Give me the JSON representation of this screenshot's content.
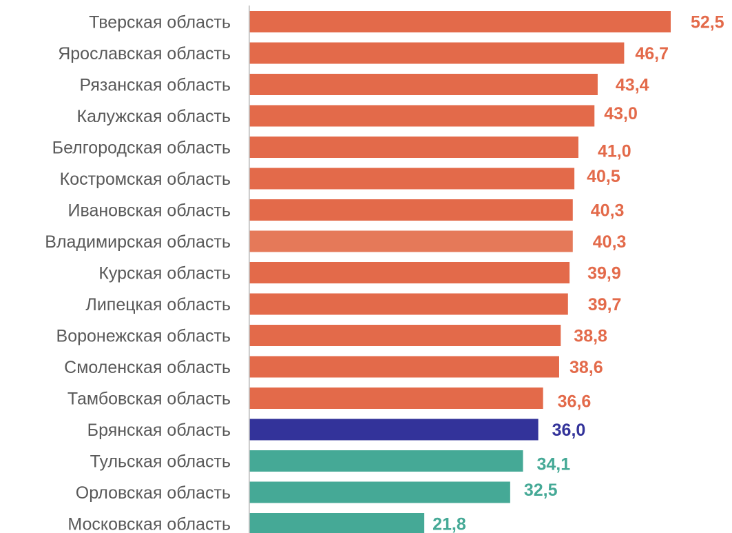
{
  "colors": {
    "above": "#E36A4A",
    "highlight": "#E57959",
    "selected": "#33339A",
    "below": "#45A996",
    "category_text": "#595959",
    "axis": "#BFBFBF"
  },
  "chart_data": {
    "type": "bar",
    "orientation": "horizontal",
    "title": "",
    "xlabel": "",
    "ylabel": "",
    "xlim": [
      0,
      52.5
    ],
    "grid": false,
    "legend": "none",
    "categories": [
      "Тверская область",
      "Ярославская область",
      "Рязанская область",
      "Калужская область",
      "Белгородская область",
      "Костромская область",
      "Ивановская область",
      "Владимирская область",
      "Курская область",
      "Липецкая область",
      "Воронежская область",
      "Смоленская область",
      "Тамбовская область",
      "Брянская область",
      "Тульская область",
      "Орловская область",
      "Московская область"
    ],
    "values": [
      52.5,
      46.7,
      43.4,
      43.0,
      41.0,
      40.5,
      40.3,
      40.3,
      39.9,
      39.7,
      38.8,
      38.6,
      36.6,
      36.0,
      34.1,
      32.5,
      21.8
    ],
    "value_labels": [
      "52,5",
      "46,7",
      "43,4",
      "43,0",
      "41,0",
      "40,5",
      "40,3",
      "40,3",
      "39,9",
      "39,7",
      "38,8",
      "38,6",
      "36,6",
      "36,0",
      "34,1",
      "32,5",
      "21,8"
    ],
    "bar_color_keys": [
      "above",
      "above",
      "above",
      "above",
      "above",
      "above",
      "above",
      "highlight",
      "above",
      "above",
      "above",
      "above",
      "above",
      "selected",
      "below",
      "below",
      "below"
    ]
  }
}
